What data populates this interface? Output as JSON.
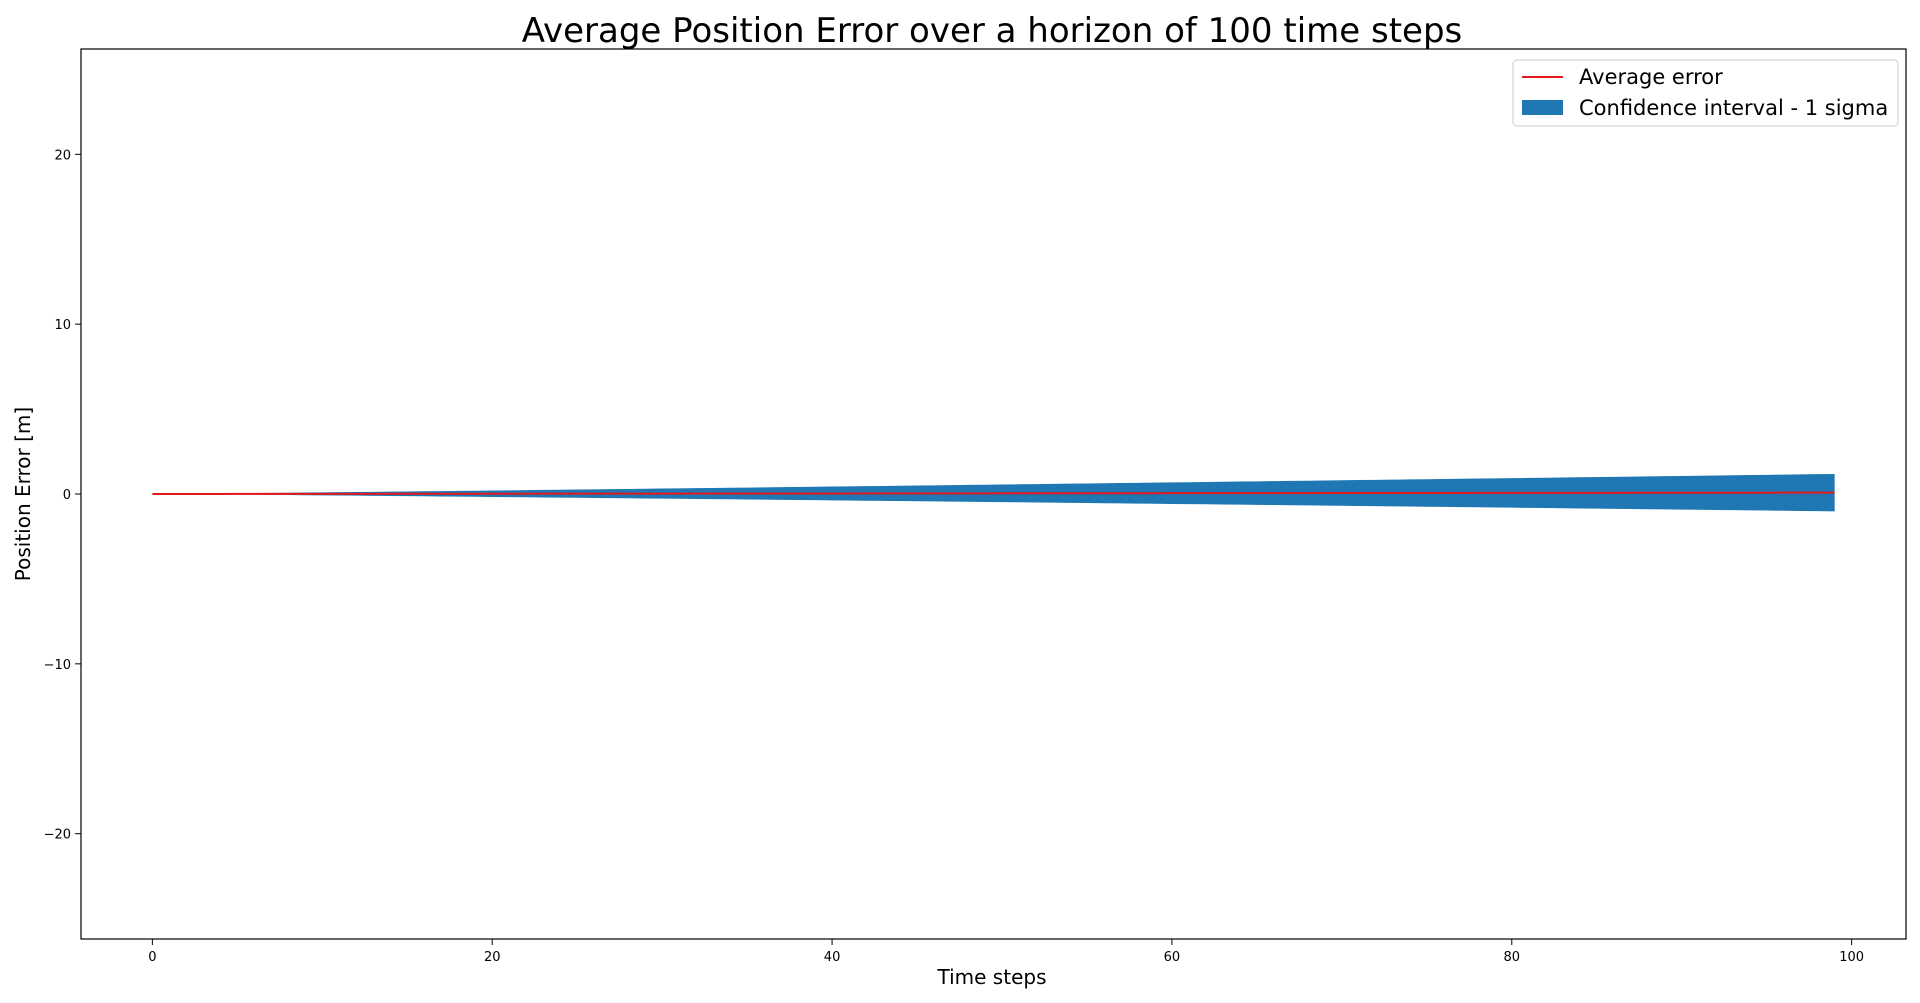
{
  "chart_data": {
    "type": "area",
    "title": "Average Position Error over a horizon of 100 time steps",
    "xlabel": "Time steps",
    "ylabel": "Position Error [m]",
    "xlim": [
      -4.2,
      103.2
    ],
    "ylim": [
      -26.2,
      26.2
    ],
    "xticks": [
      0,
      20,
      40,
      60,
      80,
      100
    ],
    "xtick_labels": [
      "0",
      "20",
      "40",
      "60",
      "80",
      "100"
    ],
    "yticks": [
      -20,
      -10,
      0,
      10,
      20
    ],
    "ytick_labels": [
      "−20",
      "−10",
      "0",
      "10",
      "20"
    ],
    "grid": false,
    "legend_position": "top-right",
    "colors": {
      "mean": "#e3191c",
      "band": "#1f77b4"
    },
    "series": [
      {
        "name": "Average error",
        "kind": "line",
        "x_start": 0,
        "x_end": 99,
        "mean_start": 0.0,
        "mean_end": 0.08
      },
      {
        "name": "Confidence interval - 1 sigma",
        "kind": "band",
        "x_start": 0,
        "x_end": 99,
        "sigma_at_end": 1.1
      }
    ]
  }
}
